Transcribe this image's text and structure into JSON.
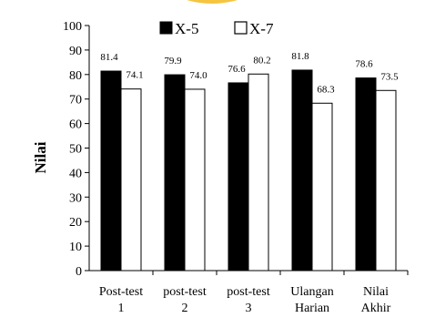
{
  "chart_data": {
    "type": "bar",
    "ylabel": "Nilai",
    "xlabel": "",
    "ylim": [
      0,
      100
    ],
    "ytick_step": 10,
    "legend_position": "top-center",
    "grid": false,
    "categories": [
      [
        "Post-test",
        "1"
      ],
      [
        "post-test",
        "2"
      ],
      [
        "post-test",
        "3"
      ],
      [
        "Ulangan",
        "Harian"
      ],
      [
        "Nilai",
        "Akhir"
      ]
    ],
    "series": [
      {
        "name": "X-5",
        "color": "#000000",
        "values": [
          81.4,
          79.9,
          76.6,
          81.8,
          78.6
        ]
      },
      {
        "name": "X-7",
        "color": "#ffffff",
        "values": [
          74.1,
          74.0,
          80.2,
          68.3,
          73.5
        ]
      }
    ]
  },
  "decoration": {
    "top_arc_color": "#f5c542"
  }
}
